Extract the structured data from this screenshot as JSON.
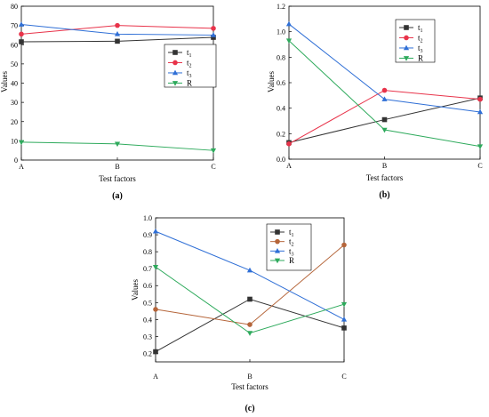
{
  "chart_data": [
    {
      "type": "line",
      "caption": "(a)",
      "xlabel": "Test factors",
      "ylabel": "Values",
      "categories": [
        "A",
        "B",
        "C"
      ],
      "ylim": [
        0,
        80
      ],
      "yticks": [
        "0",
        "10",
        "20",
        "30",
        "40",
        "50",
        "60",
        "70",
        "80"
      ],
      "legend_position": "right",
      "series": [
        {
          "name": "t",
          "sub": "1",
          "values": [
            61.5,
            61.8,
            63.8
          ],
          "color": "#333333",
          "marker": "square"
        },
        {
          "name": "t",
          "sub": "2",
          "values": [
            65.5,
            70.0,
            68.5
          ],
          "color": "#e8334a",
          "marker": "circle"
        },
        {
          "name": "t",
          "sub": "3",
          "values": [
            70.5,
            65.5,
            65.0
          ],
          "color": "#2f6fd6",
          "marker": "triangle-up"
        },
        {
          "name": "R",
          "sub": "",
          "values": [
            9.3,
            8.4,
            5.0
          ],
          "color": "#2eaa5c",
          "marker": "triangle-down"
        }
      ]
    },
    {
      "type": "line",
      "caption": "(b)",
      "xlabel": "Test factors",
      "ylabel": "Values",
      "categories": [
        "A",
        "B",
        "C"
      ],
      "ylim": [
        0,
        1.2
      ],
      "yticks": [
        "0.0",
        "0.2",
        "0.4",
        "0.6",
        "0.8",
        "1.0",
        "1.2"
      ],
      "legend_position": "top-right",
      "series": [
        {
          "name": "t",
          "sub": "1",
          "values": [
            0.13,
            0.31,
            0.48
          ],
          "color": "#333333",
          "marker": "square"
        },
        {
          "name": "t",
          "sub": "2",
          "values": [
            0.12,
            0.54,
            0.47
          ],
          "color": "#e8334a",
          "marker": "circle"
        },
        {
          "name": "t",
          "sub": "3",
          "values": [
            1.06,
            0.47,
            0.37
          ],
          "color": "#2f6fd6",
          "marker": "triangle-up"
        },
        {
          "name": "R",
          "sub": "",
          "values": [
            0.93,
            0.23,
            0.1
          ],
          "color": "#2eaa5c",
          "marker": "triangle-down"
        }
      ]
    },
    {
      "type": "line",
      "caption": "(c)",
      "xlabel": "Test factors",
      "ylabel": "Values",
      "categories": [
        "A",
        "B",
        "C"
      ],
      "ylim": [
        0.15,
        1.0
      ],
      "yticks": [
        "0.2",
        "0.3",
        "0.4",
        "0.5",
        "0.6",
        "0.7",
        "0.8",
        "0.9",
        "1.0"
      ],
      "ytick_values": [
        0.2,
        0.3,
        0.4,
        0.5,
        0.6,
        0.7,
        0.8,
        0.9,
        1.0
      ],
      "legend_position": "top-right",
      "series": [
        {
          "name": "t",
          "sub": "1",
          "values": [
            0.21,
            0.52,
            0.35
          ],
          "color": "#333333",
          "marker": "square"
        },
        {
          "name": "t",
          "sub": "2",
          "values": [
            0.46,
            0.37,
            0.84
          ],
          "color": "#b5653a",
          "marker": "circle"
        },
        {
          "name": "t",
          "sub": "3",
          "values": [
            0.92,
            0.69,
            0.4
          ],
          "color": "#2f6fd6",
          "marker": "triangle-up"
        },
        {
          "name": "R",
          "sub": "",
          "values": [
            0.71,
            0.32,
            0.49
          ],
          "color": "#2eaa5c",
          "marker": "triangle-down"
        }
      ]
    }
  ]
}
